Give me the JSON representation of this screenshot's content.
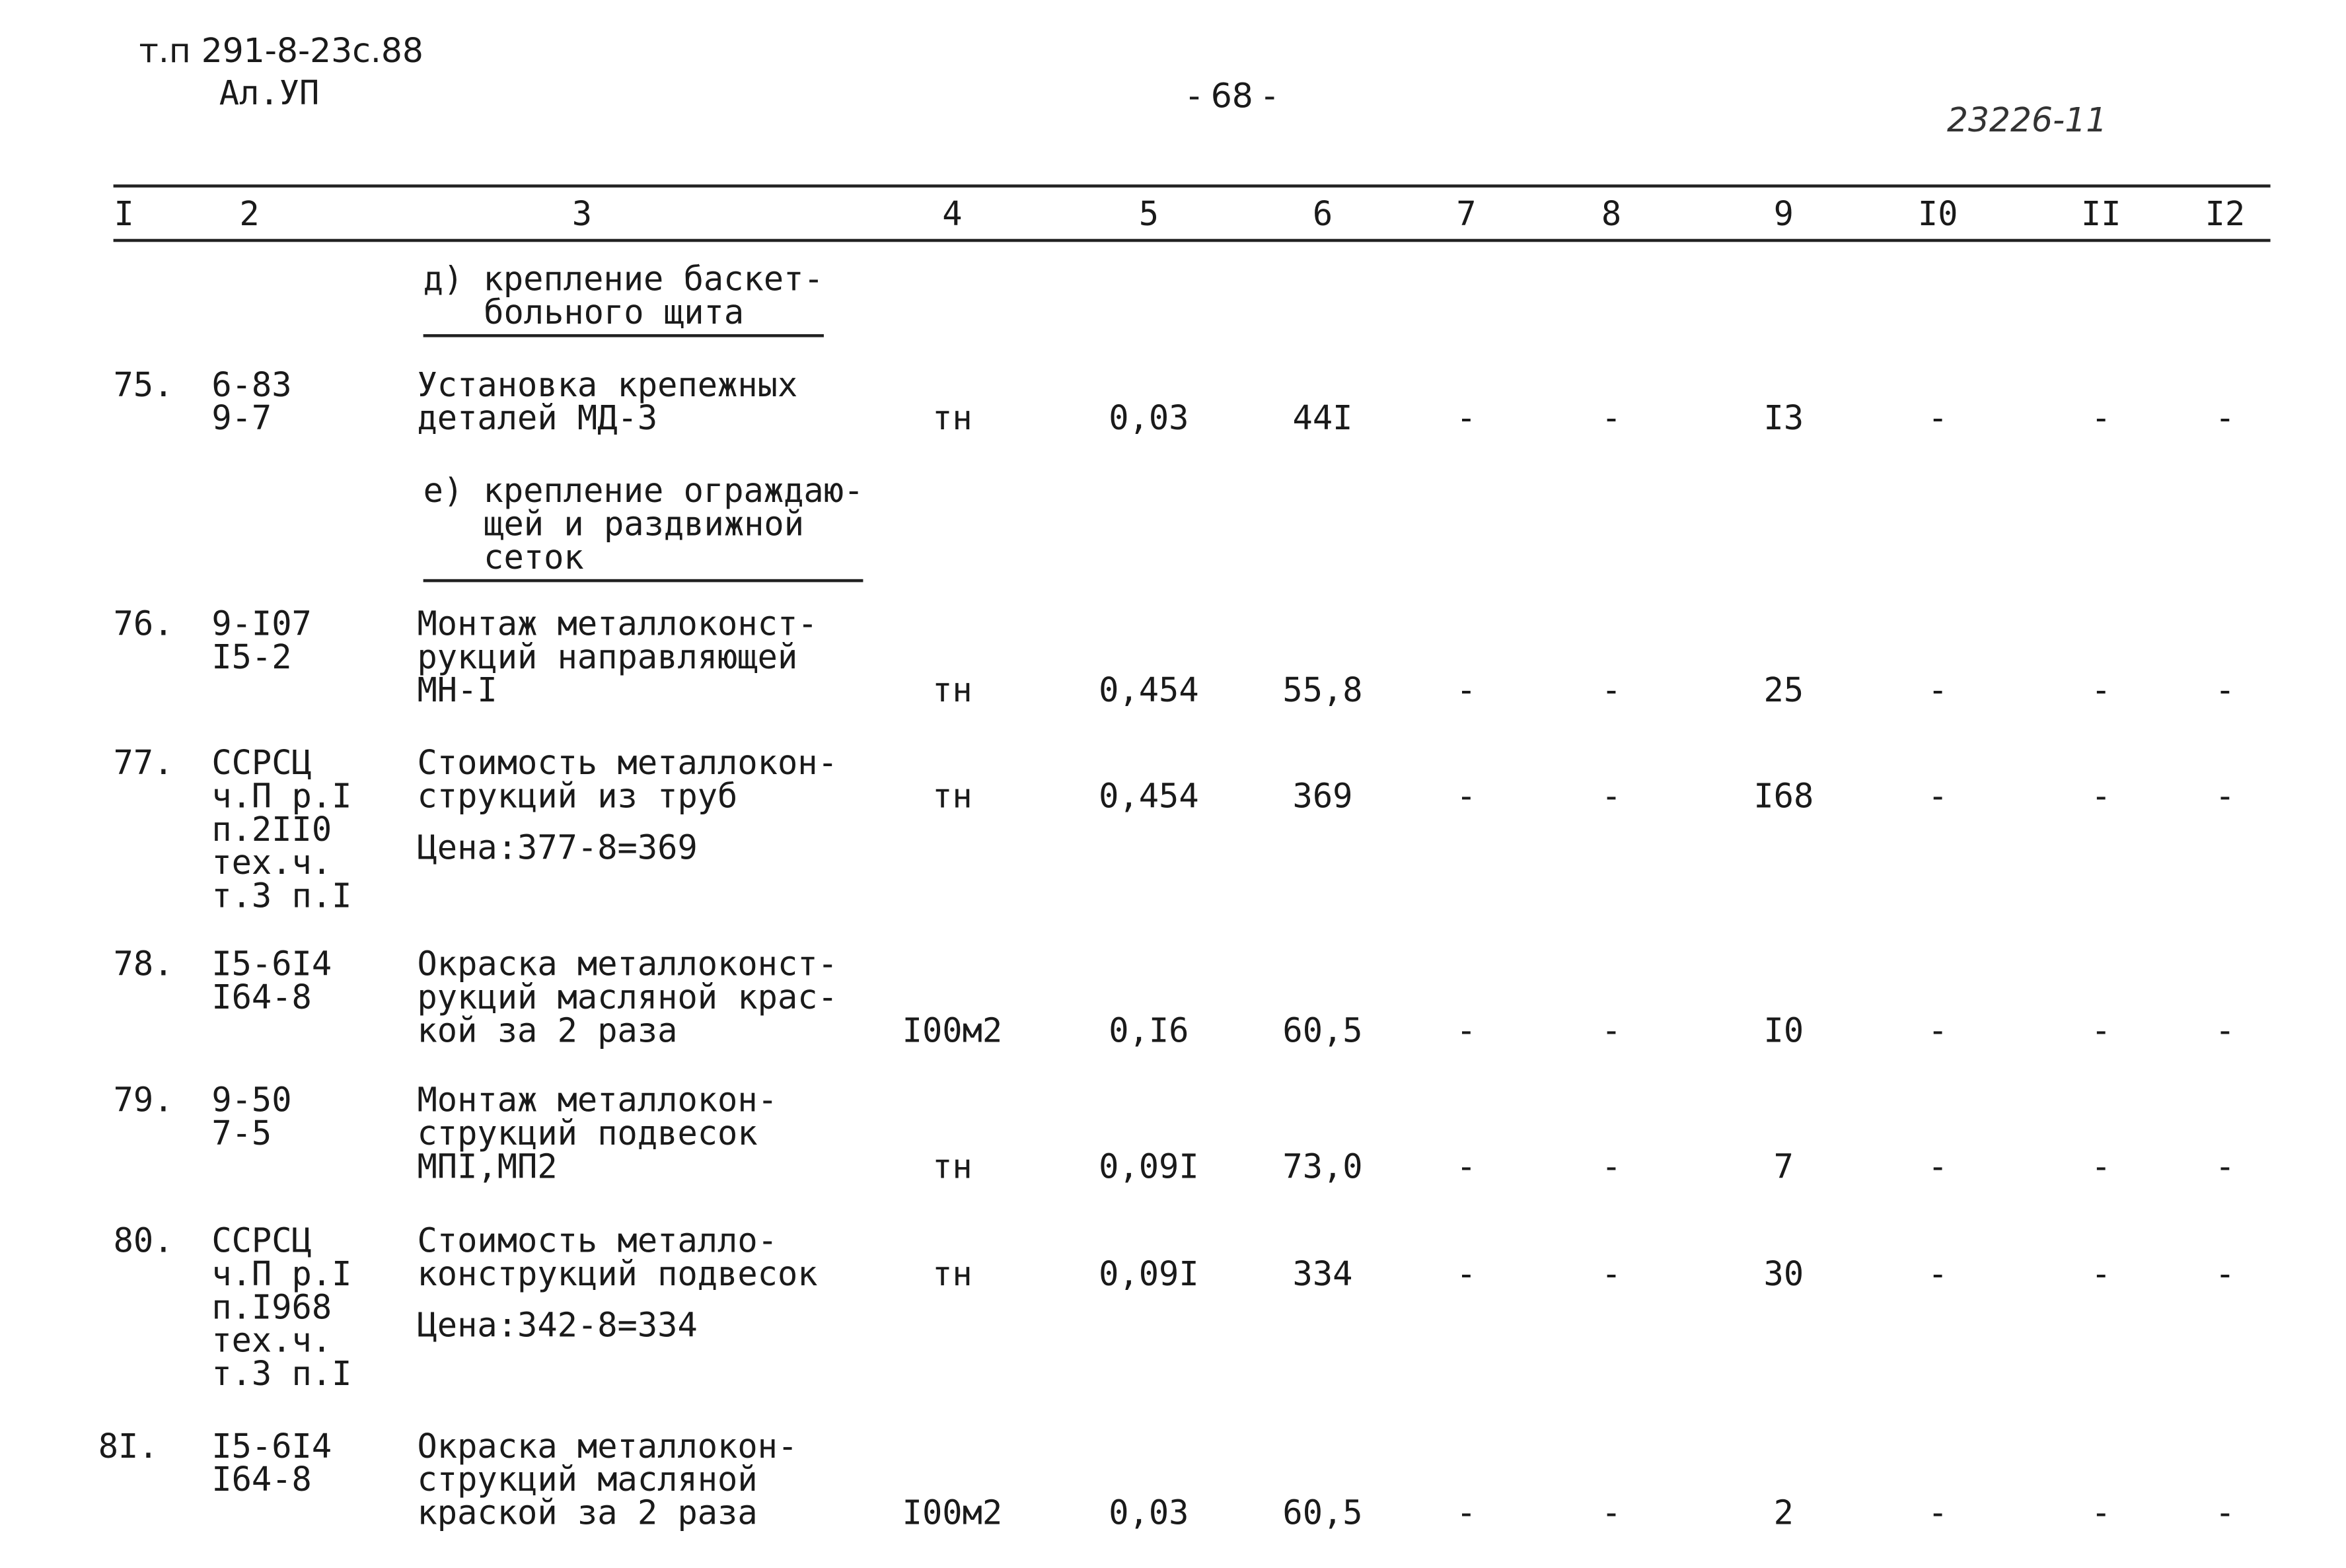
{
  "header": {
    "stamp": [
      "т.п 291-8-23с.88",
      "Ал.УП"
    ],
    "page": "- 68 -",
    "number": "23226-11"
  },
  "table": {
    "columns": [
      "I",
      "2",
      "3",
      "4",
      "5",
      "6",
      "7",
      "8",
      "9",
      "I0",
      "II",
      "I2"
    ],
    "items": [
      {
        "section": [
          "д) крепление баскет-",
          "больного щита"
        ]
      },
      {
        "no": "75.",
        "code": [
          "6-83",
          "9-7"
        ],
        "work": [
          "Установка крепежных",
          "деталей МД-3"
        ],
        "values": [
          "тн",
          "0,03",
          "44I",
          "-",
          "-",
          "I3",
          "-",
          "-",
          "-"
        ]
      },
      {
        "section": [
          "е) крепление ограждаю-",
          "щей и раздвижной",
          "сеток"
        ]
      },
      {
        "no": "76.",
        "code": [
          "9-I07",
          "I5-2"
        ],
        "work": [
          "Монтаж металлоконст-",
          "рукций направляющей",
          "МН-I"
        ],
        "values": [
          "тн",
          "0,454",
          "55,8",
          "-",
          "-",
          "25",
          "-",
          "-",
          "-"
        ]
      },
      {
        "no": "77.",
        "code": [
          "ССРСЦ",
          "ч.П р.I",
          "п.2II0",
          "тех.ч.",
          "т.3 п.I"
        ],
        "work": [
          "Стоимость металлокон-",
          "струкций из труб"
        ],
        "note": "Цена:377-8=369",
        "values": [
          "тн",
          "0,454",
          "369",
          "-",
          "-",
          "I68",
          "-",
          "-",
          "-"
        ]
      },
      {
        "no": "78.",
        "code": [
          "I5-6I4",
          "I64-8"
        ],
        "work": [
          "Окраска металлоконст-",
          "рукций масляной крас-",
          "кой за 2 раза"
        ],
        "values": [
          "I00м2",
          "0,I6",
          "60,5",
          "-",
          "-",
          "I0",
          "-",
          "-",
          "-"
        ]
      },
      {
        "no": "79.",
        "code": [
          "9-50",
          "7-5"
        ],
        "work": [
          "Монтаж металлокон-",
          "струкций подвесок",
          "МПI,МП2"
        ],
        "values": [
          "тн",
          "0,09I",
          "73,0",
          "-",
          "-",
          "7",
          "-",
          "-",
          "-"
        ]
      },
      {
        "no": "80.",
        "code": [
          "ССРСЦ",
          "ч.П р.I",
          "п.I968",
          "тех.ч.",
          "т.3 п.I"
        ],
        "work": [
          "Стоимость металло-",
          "конструкций подвесок"
        ],
        "note": "Цена:342-8=334",
        "values": [
          "тн",
          "0,09I",
          "334",
          "-",
          "-",
          "30",
          "-",
          "-",
          "-"
        ]
      },
      {
        "no": "8I.",
        "code": [
          "I5-6I4",
          "I64-8"
        ],
        "work": [
          "Окраска металлокон-",
          "струкций масляной",
          "краской за 2 раза"
        ],
        "values": [
          "I00м2",
          "0,03",
          "60,5",
          "-",
          "-",
          "2",
          "-",
          "-",
          "-"
        ]
      }
    ]
  }
}
